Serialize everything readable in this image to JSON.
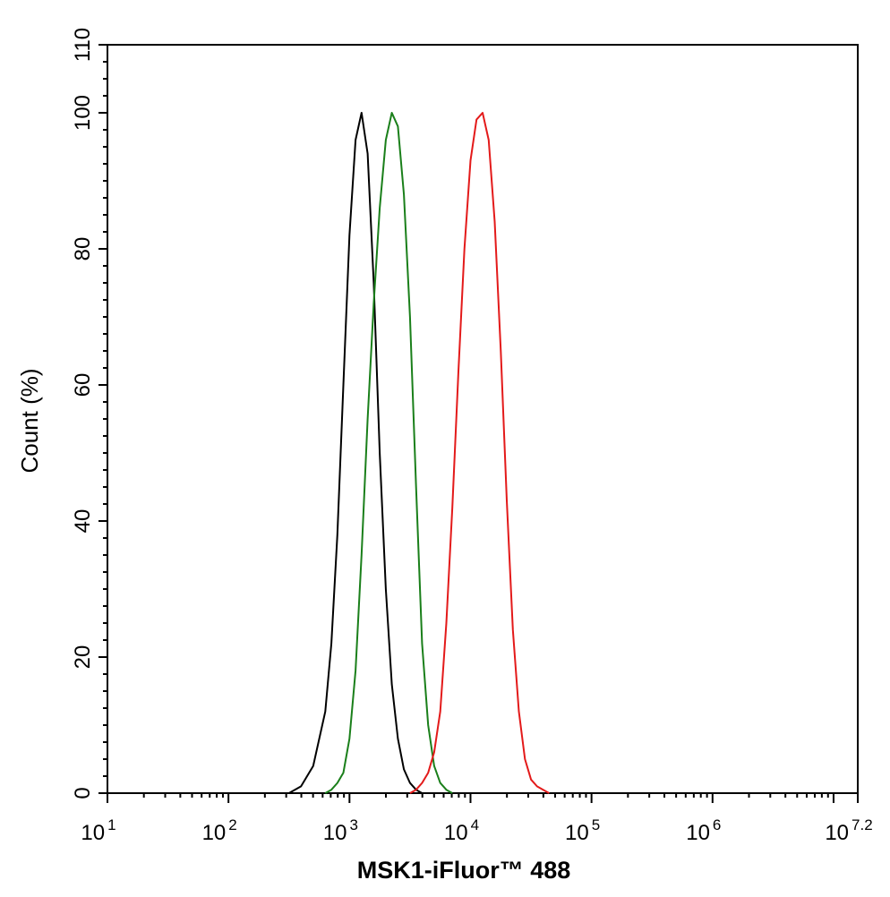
{
  "chart_data": {
    "type": "line",
    "xlabel": "MSK1-iFluor™ 488",
    "ylabel": "Count  (%)",
    "x_scale": "log10",
    "xlim": [
      10,
      15848931.9
    ],
    "ylim": [
      0,
      110
    ],
    "x_tick_labels": [
      {
        "base": "10",
        "exp": "1"
      },
      {
        "base": "10",
        "exp": "2"
      },
      {
        "base": "10",
        "exp": "3"
      },
      {
        "base": "10",
        "exp": "4"
      },
      {
        "base": "10",
        "exp": "5"
      },
      {
        "base": "10",
        "exp": "6"
      },
      {
        "base": "10",
        "exp": "7.2"
      }
    ],
    "y_ticks": [
      0,
      20,
      40,
      60,
      80,
      100,
      110
    ],
    "y_tick_labels": [
      "0",
      "20",
      "40",
      "60",
      "80",
      "100",
      "110"
    ],
    "grid": false,
    "legend": "none",
    "series": [
      {
        "color": "#000000",
        "points": [
          [
            316,
            0
          ],
          [
            398,
            1
          ],
          [
            501,
            4
          ],
          [
            631,
            12
          ],
          [
            708,
            22
          ],
          [
            794,
            38
          ],
          [
            891,
            60
          ],
          [
            1000,
            82
          ],
          [
            1122,
            96
          ],
          [
            1259,
            100
          ],
          [
            1413,
            94
          ],
          [
            1585,
            75
          ],
          [
            1778,
            50
          ],
          [
            1995,
            30
          ],
          [
            2239,
            16
          ],
          [
            2512,
            8
          ],
          [
            2818,
            3.5
          ],
          [
            3162,
            1.5
          ],
          [
            3548,
            0.5
          ],
          [
            3981,
            0
          ]
        ]
      },
      {
        "color": "#1a7f1a",
        "points": [
          [
            631,
            0
          ],
          [
            708,
            0.5
          ],
          [
            794,
            1.5
          ],
          [
            891,
            3
          ],
          [
            1000,
            8
          ],
          [
            1122,
            18
          ],
          [
            1259,
            35
          ],
          [
            1413,
            55
          ],
          [
            1585,
            72
          ],
          [
            1778,
            86
          ],
          [
            1995,
            96
          ],
          [
            2239,
            100
          ],
          [
            2512,
            98
          ],
          [
            2818,
            88
          ],
          [
            3162,
            70
          ],
          [
            3548,
            45
          ],
          [
            3981,
            22
          ],
          [
            4467,
            10
          ],
          [
            5012,
            4
          ],
          [
            5623,
            1.5
          ],
          [
            6310,
            0.5
          ],
          [
            7079,
            0
          ]
        ]
      },
      {
        "color": "#e31a1a",
        "points": [
          [
            3162,
            0
          ],
          [
            3548,
            0.5
          ],
          [
            3981,
            1.5
          ],
          [
            4467,
            3
          ],
          [
            5012,
            6
          ],
          [
            5623,
            12
          ],
          [
            6310,
            25
          ],
          [
            7079,
            42
          ],
          [
            7943,
            62
          ],
          [
            8913,
            80
          ],
          [
            10000,
            93
          ],
          [
            11220,
            99
          ],
          [
            12589,
            100
          ],
          [
            14125,
            96
          ],
          [
            15849,
            84
          ],
          [
            17783,
            65
          ],
          [
            19953,
            43
          ],
          [
            22387,
            24
          ],
          [
            25119,
            12
          ],
          [
            28184,
            5
          ],
          [
            31623,
            2
          ],
          [
            35481,
            1
          ],
          [
            39811,
            0.5
          ],
          [
            44668,
            0
          ]
        ]
      }
    ]
  }
}
